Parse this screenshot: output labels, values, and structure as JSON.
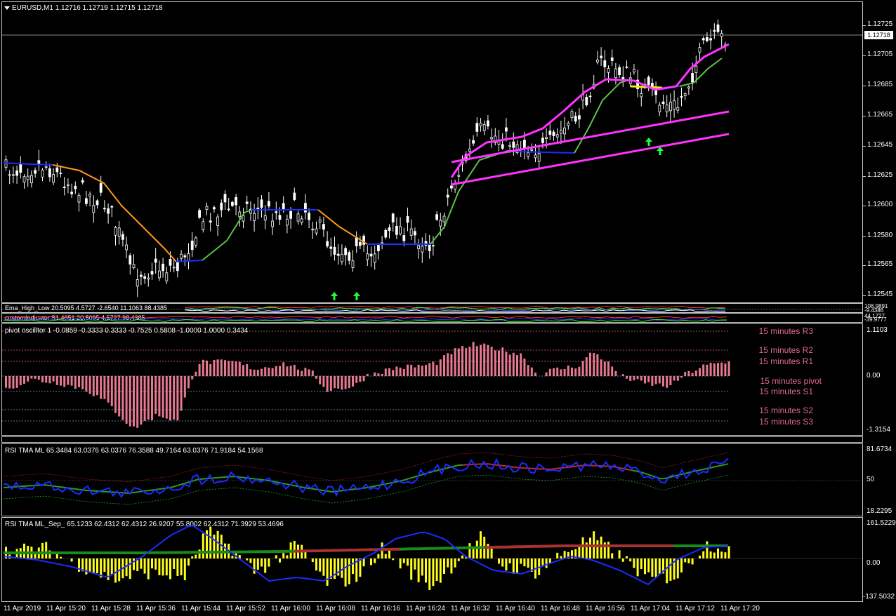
{
  "main": {
    "header": "EURUSD,M1  1.12716 1.12719 1.12715 1.12718",
    "current_price": "1.12718",
    "price_scale": [
      "1.12725",
      "1.12705",
      "1.12685",
      "1.12665",
      "1.12645",
      "1.12625",
      "1.12600",
      "1.12580",
      "1.12565",
      "1.12545"
    ]
  },
  "ema_panel": {
    "header": "Ema_High_Low 20.5095 4.5727 -2.6540 11.1063 88.4385",
    "scale": [
      "108.9891",
      "-9.4386"
    ]
  },
  "custom_panel": {
    "header": "customIndicator S1.4651 20.5095 4.5727 98.4385",
    "scale": [
      "44.1727",
      "-39.9777"
    ]
  },
  "pivot_panel": {
    "header": "pivot oscilltor 1 -0.0859 -0.3333 0.3333 -0.7525 0.5808 -1.0000 1.0000 0.3434",
    "scale": [
      "1.1103",
      "0.00",
      "-1.3154"
    ],
    "labels": [
      "15 minutes R3",
      "15 minutes R2",
      "15 minutes R1",
      "15 minutes pivot",
      "15 minutes S1",
      "15 minutes S2",
      "15 minutes S3"
    ]
  },
  "rsi_panel": {
    "header": "RSI TMA ML 65.3484 63.0376 63.0376 76.3588 49.7164 63.0376 71.9184 54.1568",
    "scale": [
      "81.6734",
      "50",
      "18.2295"
    ]
  },
  "sep_panel": {
    "header": "RSI TMA ML_Sep_ 65.1233 62.4312 62.4312 26.9207 55.8002 62.4312 71.3929 53.4696",
    "scale": [
      "161.5229",
      "0.00",
      "-137.5032"
    ]
  },
  "time_axis": [
    "11 Apr 2019",
    "11 Apr 15:20",
    "11 Apr 15:28",
    "11 Apr 15:36",
    "11 Apr 15:44",
    "11 Apr 15:52",
    "11 Apr 16:00",
    "11 Apr 16:08",
    "11 Apr 16:16",
    "11 Apr 16:24",
    "11 Apr 16:32",
    "11 Apr 16:40",
    "11 Apr 16:48",
    "11 Apr 16:56",
    "11 Apr 17:04",
    "11 Apr 17:12",
    "11 Apr 17:20"
  ],
  "colors": {
    "ma_down": "#ff9a1a",
    "ma_up": "#5fc04a",
    "ma_flat": "#1a2cff",
    "channel": "#ff33ff",
    "arrow": "#1aff3a",
    "bar_pink": "#e6798f",
    "rsi_blue": "#1a2cff",
    "hist_yellow": "#ffff1a"
  }
}
